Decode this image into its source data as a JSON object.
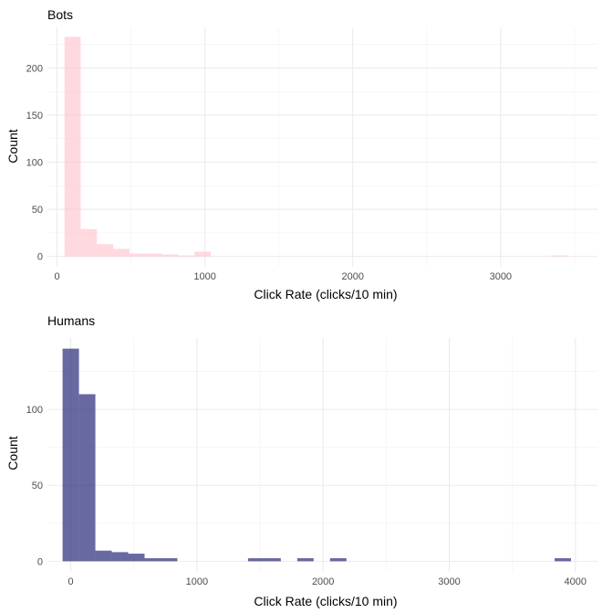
{
  "chart_data": [
    {
      "type": "bar",
      "title": "Bots",
      "xlabel": "Click Rate (clicks/10 min)",
      "ylabel": "Count",
      "xlim": [
        -65,
        3655
      ],
      "ylim": [
        -11,
        243
      ],
      "xticks": [
        0,
        1000,
        2000,
        3000
      ],
      "yticks": [
        0,
        50,
        100,
        150,
        200
      ],
      "bin_width": 110,
      "grid": true,
      "color": "#ffc0cb",
      "opacity": 0.6,
      "bins": [
        {
          "x0": 50,
          "x1": 160,
          "count": 233
        },
        {
          "x0": 160,
          "x1": 270,
          "count": 29
        },
        {
          "x0": 270,
          "x1": 380,
          "count": 13
        },
        {
          "x0": 380,
          "x1": 490,
          "count": 8
        },
        {
          "x0": 490,
          "x1": 600,
          "count": 3
        },
        {
          "x0": 600,
          "x1": 710,
          "count": 3
        },
        {
          "x0": 710,
          "x1": 820,
          "count": 2
        },
        {
          "x0": 820,
          "x1": 930,
          "count": 1
        },
        {
          "x0": 930,
          "x1": 1040,
          "count": 5
        },
        {
          "x0": 3340,
          "x1": 3450,
          "count": 1
        }
      ]
    },
    {
      "type": "bar",
      "title": "Humans",
      "xlabel": "Click Rate (clicks/10 min)",
      "ylabel": "Count",
      "xlim": [
        -185,
        4175
      ],
      "ylim": [
        -7,
        147
      ],
      "xticks": [
        0,
        1000,
        2000,
        3000,
        4000
      ],
      "yticks": [
        0,
        50,
        100
      ],
      "bin_width": 130,
      "grid": true,
      "color": "#191970",
      "opacity": 0.65,
      "bins": [
        {
          "x0": -65,
          "x1": 65,
          "count": 140
        },
        {
          "x0": 65,
          "x1": 195,
          "count": 110
        },
        {
          "x0": 195,
          "x1": 325,
          "count": 7
        },
        {
          "x0": 325,
          "x1": 455,
          "count": 6
        },
        {
          "x0": 455,
          "x1": 585,
          "count": 5
        },
        {
          "x0": 585,
          "x1": 715,
          "count": 2
        },
        {
          "x0": 715,
          "x1": 845,
          "count": 2
        },
        {
          "x0": 1405,
          "x1": 1535,
          "count": 2
        },
        {
          "x0": 1535,
          "x1": 1665,
          "count": 2
        },
        {
          "x0": 1795,
          "x1": 1925,
          "count": 2
        },
        {
          "x0": 2055,
          "x1": 2185,
          "count": 2
        },
        {
          "x0": 3835,
          "x1": 3965,
          "count": 2
        }
      ]
    }
  ]
}
